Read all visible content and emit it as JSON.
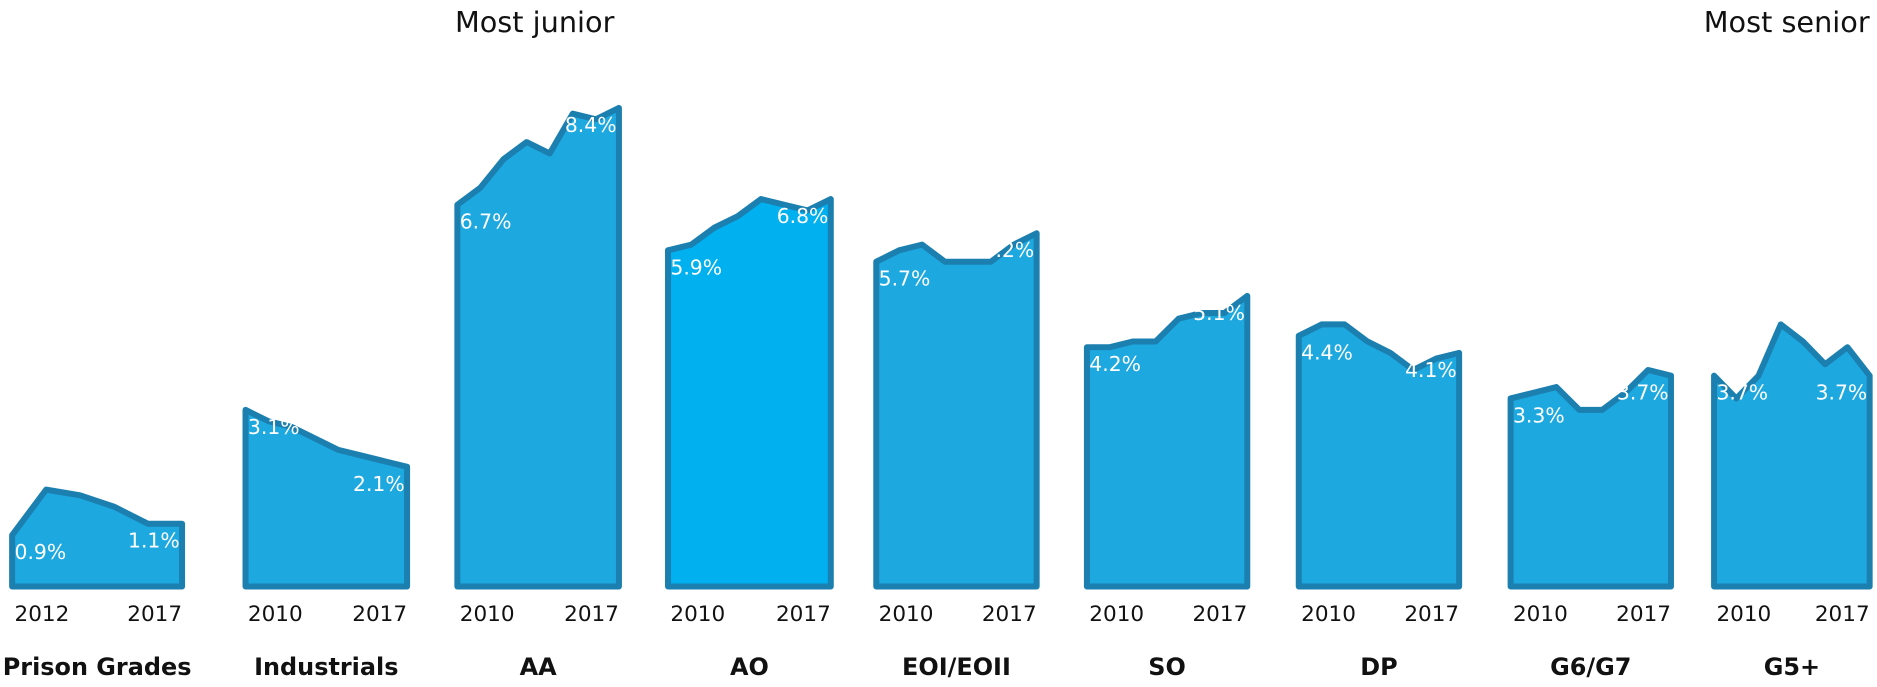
{
  "chart_data": {
    "type": "area",
    "annotations": [
      "Most junior",
      "Most senior"
    ],
    "ylim": [
      0,
      9
    ],
    "series": [
      {
        "name": "Prison Grades",
        "color": "#1ea8e0",
        "x": [
          2012,
          2013,
          2014,
          2015,
          2016,
          2017
        ],
        "xticks": [
          2012,
          2017
        ],
        "values": [
          0.9,
          1.7,
          1.6,
          1.4,
          1.1,
          1.1
        ],
        "value_labels": [
          "0.9%",
          null,
          null,
          null,
          null,
          "1.1%"
        ]
      },
      {
        "name": "Industrials",
        "color": "#1ea8e0",
        "x": [
          2010,
          2011,
          2012,
          2013,
          2014,
          2015,
          2016,
          2017
        ],
        "xticks": [
          2010,
          2017
        ],
        "values": [
          3.1,
          2.9,
          2.8,
          2.6,
          2.4,
          2.3,
          2.2,
          2.1
        ],
        "value_labels": [
          "3.1%",
          null,
          null,
          null,
          null,
          null,
          null,
          "2.1%"
        ]
      },
      {
        "name": "AA",
        "color": "#1ea8e0",
        "x": [
          2010,
          2011,
          2012,
          2013,
          2014,
          2015,
          2016,
          2017
        ],
        "xticks": [
          2010,
          2017
        ],
        "values": [
          6.7,
          7.0,
          7.5,
          7.8,
          7.6,
          8.3,
          8.2,
          8.4
        ],
        "value_labels": [
          "6.7%",
          null,
          null,
          null,
          null,
          null,
          null,
          "8.4%"
        ]
      },
      {
        "name": "AO",
        "color": "#00b0ef",
        "x": [
          2010,
          2011,
          2012,
          2013,
          2014,
          2015,
          2016,
          2017
        ],
        "xticks": [
          2010,
          2017
        ],
        "values": [
          5.9,
          6.0,
          6.3,
          6.5,
          6.8,
          6.7,
          6.6,
          6.8
        ],
        "value_labels": [
          "5.9%",
          null,
          null,
          null,
          null,
          null,
          null,
          "6.8%"
        ]
      },
      {
        "name": "EOI/EOII",
        "color": "#1ea8e0",
        "x": [
          2010,
          2011,
          2012,
          2013,
          2014,
          2015,
          2016,
          2017
        ],
        "xticks": [
          2010,
          2017
        ],
        "values": [
          5.7,
          5.9,
          6.0,
          5.7,
          5.7,
          5.7,
          6.0,
          6.2
        ],
        "value_labels": [
          "5.7%",
          null,
          null,
          null,
          null,
          null,
          null,
          "6.2%"
        ]
      },
      {
        "name": "SO",
        "color": "#1ea8e0",
        "x": [
          2010,
          2011,
          2012,
          2013,
          2014,
          2015,
          2016,
          2017
        ],
        "xticks": [
          2010,
          2017
        ],
        "values": [
          4.2,
          4.2,
          4.3,
          4.3,
          4.7,
          4.8,
          4.8,
          5.1
        ],
        "value_labels": [
          "4.2%",
          null,
          null,
          null,
          null,
          null,
          null,
          "5.1%"
        ]
      },
      {
        "name": "DP",
        "color": "#1ea8e0",
        "x": [
          2010,
          2011,
          2012,
          2013,
          2014,
          2015,
          2016,
          2017
        ],
        "xticks": [
          2010,
          2017
        ],
        "values": [
          4.4,
          4.6,
          4.6,
          4.3,
          4.1,
          3.8,
          4.0,
          4.1
        ],
        "value_labels": [
          "4.4%",
          null,
          null,
          null,
          null,
          null,
          null,
          "4.1%"
        ]
      },
      {
        "name": "G6/G7",
        "color": "#1ea8e0",
        "x": [
          2010,
          2011,
          2012,
          2013,
          2014,
          2015,
          2016,
          2017
        ],
        "xticks": [
          2010,
          2017
        ],
        "values": [
          3.3,
          3.4,
          3.5,
          3.1,
          3.1,
          3.4,
          3.8,
          3.7
        ],
        "value_labels": [
          "3.3%",
          null,
          null,
          null,
          null,
          null,
          null,
          "3.7%"
        ]
      },
      {
        "name": "G5+",
        "color": "#1ea8e0",
        "x": [
          2010,
          2011,
          2012,
          2013,
          2014,
          2015,
          2016,
          2017
        ],
        "xticks": [
          2010,
          2017
        ],
        "values": [
          3.7,
          3.3,
          3.7,
          4.6,
          4.3,
          3.9,
          4.2,
          3.7
        ],
        "value_labels": [
          "3.7%",
          null,
          null,
          null,
          null,
          null,
          null,
          "3.7%"
        ]
      }
    ]
  }
}
